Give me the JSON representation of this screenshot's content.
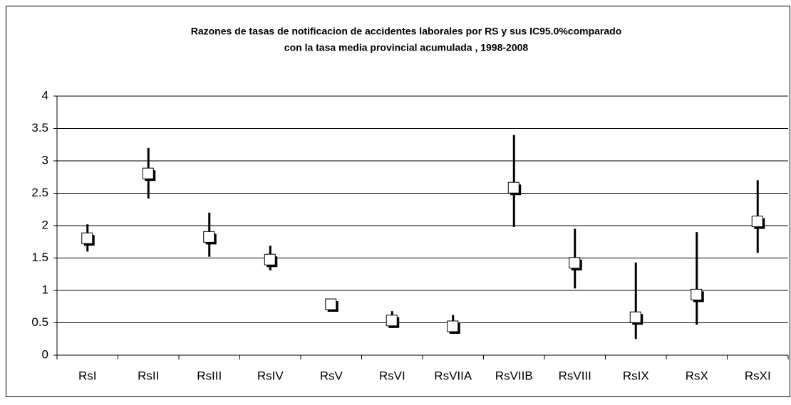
{
  "chart_data": {
    "type": "errorbar",
    "title": [
      "Razones de tasas de notificacion de accidentes laborales por RS y sus  IC95.0%comparado",
      "con la tasa media provincial acumulada , 1998-2008"
    ],
    "categories": [
      "RsI",
      "RsII",
      "RsIII",
      "RsIV",
      "RsV",
      "RsVI",
      "RsVIIA",
      "RsVIIB",
      "RsVIII",
      "RsIX",
      "RsX",
      "RsXI"
    ],
    "values": [
      1.8,
      2.8,
      1.82,
      1.47,
      0.78,
      0.53,
      0.44,
      2.58,
      1.42,
      0.58,
      0.93,
      2.06
    ],
    "low": [
      1.6,
      2.42,
      1.52,
      1.31,
      0.72,
      0.42,
      0.33,
      1.98,
      1.03,
      0.25,
      0.47,
      1.58
    ],
    "high": [
      2.02,
      3.2,
      2.2,
      1.69,
      0.85,
      0.68,
      0.62,
      3.4,
      1.95,
      1.43,
      1.9,
      2.7
    ],
    "color": "#000000",
    "marker_fill": "#ffffff",
    "ylim": [
      0,
      4
    ],
    "yticks": [
      0,
      0.5,
      1,
      1.5,
      2,
      2.5,
      3,
      3.5,
      4
    ],
    "grid": true
  }
}
